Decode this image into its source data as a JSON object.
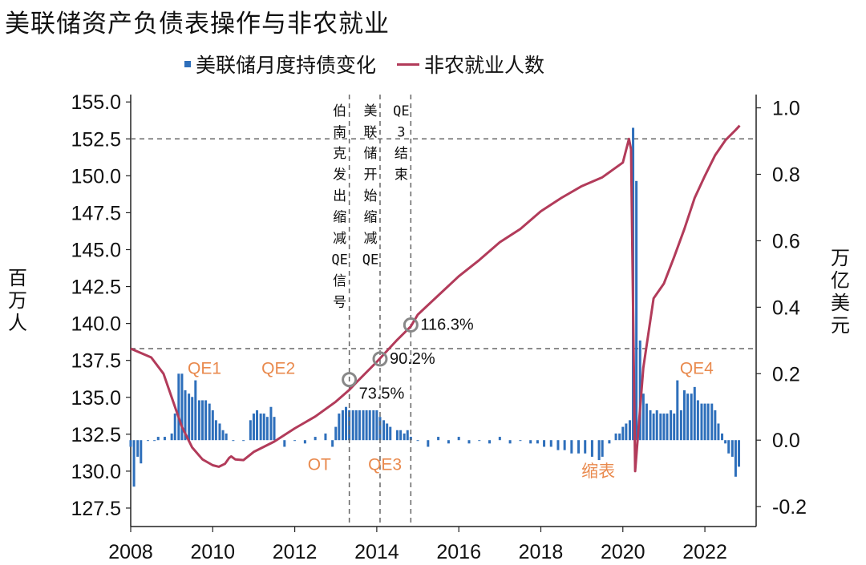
{
  "title": "美联储资产负债表操作与非农就业",
  "legend": {
    "bar_label": "美联储月度持债变化",
    "line_label": "非农就业人数"
  },
  "colors": {
    "bars": "#2e6fbb",
    "line": "#b23b5a",
    "annotation": "#e98a4e",
    "reference": "#666666"
  },
  "chart_data": {
    "type": "bar+line",
    "x_ticks": [
      "2008",
      "2010",
      "2012",
      "2014",
      "2016",
      "2018",
      "2020",
      "2022"
    ],
    "xlim": [
      2008.0,
      2023.25
    ],
    "left_axis": {
      "label": "百万人",
      "ylim": [
        126.25,
        155.5
      ],
      "ticks": [
        "127.5",
        "130.0",
        "132.5",
        "135.0",
        "137.5",
        "140.0",
        "142.5",
        "145.0",
        "147.5",
        "150.0",
        "152.5",
        "155.0"
      ]
    },
    "right_axis": {
      "label": "万亿美元",
      "ylim": [
        -0.26,
        1.04
      ],
      "ticks": [
        "-0.2",
        "0.0",
        "0.2",
        "0.4",
        "0.6",
        "0.8",
        "1.0"
      ]
    },
    "series": [
      {
        "name": "非农就业人数",
        "type": "line",
        "axis": "left",
        "points": [
          [
            2008.0,
            138.3
          ],
          [
            2008.5,
            137.7
          ],
          [
            2008.8,
            136.6
          ],
          [
            2009.0,
            135.0
          ],
          [
            2009.25,
            133.0
          ],
          [
            2009.5,
            131.6
          ],
          [
            2009.75,
            130.8
          ],
          [
            2010.0,
            130.4
          ],
          [
            2010.15,
            130.3
          ],
          [
            2010.3,
            130.5
          ],
          [
            2010.4,
            130.9
          ],
          [
            2010.45,
            131.0
          ],
          [
            2010.55,
            130.8
          ],
          [
            2010.75,
            130.75
          ],
          [
            2011.0,
            131.3
          ],
          [
            2011.5,
            132.0
          ],
          [
            2012.0,
            132.9
          ],
          [
            2012.5,
            133.7
          ],
          [
            2013.0,
            134.7
          ],
          [
            2013.33,
            135.5
          ],
          [
            2013.5,
            136.0
          ],
          [
            2014.0,
            137.4
          ],
          [
            2014.5,
            138.9
          ],
          [
            2014.83,
            139.8
          ],
          [
            2015.0,
            140.6
          ],
          [
            2015.5,
            141.9
          ],
          [
            2016.0,
            143.2
          ],
          [
            2016.5,
            144.3
          ],
          [
            2017.0,
            145.5
          ],
          [
            2017.5,
            146.4
          ],
          [
            2018.0,
            147.6
          ],
          [
            2018.5,
            148.5
          ],
          [
            2019.0,
            149.3
          ],
          [
            2019.5,
            149.9
          ],
          [
            2020.0,
            150.9
          ],
          [
            2020.15,
            152.5
          ],
          [
            2020.2,
            151.8
          ],
          [
            2020.3,
            130.0
          ],
          [
            2020.5,
            137.0
          ],
          [
            2020.75,
            141.7
          ],
          [
            2021.0,
            142.7
          ],
          [
            2021.25,
            144.5
          ],
          [
            2021.5,
            146.4
          ],
          [
            2021.75,
            148.5
          ],
          [
            2022.0,
            150.0
          ],
          [
            2022.25,
            151.4
          ],
          [
            2022.5,
            152.4
          ],
          [
            2022.75,
            153.1
          ],
          [
            2022.85,
            153.4
          ]
        ]
      },
      {
        "name": "美联储月度持债变化",
        "type": "bar",
        "axis": "right",
        "points": [
          [
            2008.0,
            -0.02
          ],
          [
            2008.08,
            -0.14
          ],
          [
            2008.17,
            -0.05
          ],
          [
            2008.25,
            -0.07
          ],
          [
            2008.42,
            0.0
          ],
          [
            2008.58,
            0.0
          ],
          [
            2008.67,
            0.01
          ],
          [
            2008.83,
            0.01
          ],
          [
            2009.0,
            0.02
          ],
          [
            2009.08,
            0.08
          ],
          [
            2009.17,
            0.2
          ],
          [
            2009.25,
            0.2
          ],
          [
            2009.33,
            0.15
          ],
          [
            2009.42,
            0.14
          ],
          [
            2009.5,
            0.13
          ],
          [
            2009.58,
            0.18
          ],
          [
            2009.67,
            0.12
          ],
          [
            2009.75,
            0.12
          ],
          [
            2009.83,
            0.12
          ],
          [
            2009.92,
            0.11
          ],
          [
            2010.0,
            0.09
          ],
          [
            2010.08,
            0.06
          ],
          [
            2010.17,
            0.05
          ],
          [
            2010.25,
            0.03
          ],
          [
            2010.33,
            0.02
          ],
          [
            2010.5,
            0.0
          ],
          [
            2010.75,
            0.0
          ],
          [
            2010.92,
            0.06
          ],
          [
            2011.0,
            0.08
          ],
          [
            2011.08,
            0.09
          ],
          [
            2011.17,
            0.08
          ],
          [
            2011.25,
            0.08
          ],
          [
            2011.33,
            0.07
          ],
          [
            2011.42,
            0.1
          ],
          [
            2011.5,
            0.07
          ],
          [
            2011.75,
            -0.02
          ],
          [
            2012.0,
            0.0
          ],
          [
            2012.25,
            -0.01
          ],
          [
            2012.5,
            0.01
          ],
          [
            2012.75,
            0.02
          ],
          [
            2012.92,
            -0.02
          ],
          [
            2013.0,
            0.04
          ],
          [
            2013.08,
            0.08
          ],
          [
            2013.17,
            0.09
          ],
          [
            2013.25,
            0.1
          ],
          [
            2013.33,
            0.09
          ],
          [
            2013.42,
            0.09
          ],
          [
            2013.5,
            0.09
          ],
          [
            2013.58,
            0.09
          ],
          [
            2013.67,
            0.09
          ],
          [
            2013.75,
            0.09
          ],
          [
            2013.83,
            0.09
          ],
          [
            2013.92,
            0.09
          ],
          [
            2014.0,
            0.09
          ],
          [
            2014.08,
            0.07
          ],
          [
            2014.17,
            0.06
          ],
          [
            2014.25,
            0.05
          ],
          [
            2014.33,
            0.04
          ],
          [
            2014.5,
            0.03
          ],
          [
            2014.58,
            0.03
          ],
          [
            2014.67,
            0.02
          ],
          [
            2014.75,
            0.03
          ],
          [
            2014.83,
            0.01
          ],
          [
            2015.0,
            0.0
          ],
          [
            2015.25,
            -0.02
          ],
          [
            2015.5,
            0.01
          ],
          [
            2015.75,
            -0.01
          ],
          [
            2016.0,
            0.01
          ],
          [
            2016.25,
            -0.01
          ],
          [
            2016.5,
            0.0
          ],
          [
            2016.75,
            -0.01
          ],
          [
            2017.0,
            0.01
          ],
          [
            2017.25,
            -0.01
          ],
          [
            2017.5,
            0.0
          ],
          [
            2017.75,
            -0.01
          ],
          [
            2017.92,
            -0.01
          ],
          [
            2018.08,
            -0.02
          ],
          [
            2018.25,
            -0.02
          ],
          [
            2018.42,
            -0.03
          ],
          [
            2018.58,
            -0.03
          ],
          [
            2018.75,
            -0.04
          ],
          [
            2018.92,
            -0.04
          ],
          [
            2019.08,
            -0.04
          ],
          [
            2019.25,
            -0.05
          ],
          [
            2019.42,
            -0.06
          ],
          [
            2019.5,
            -0.05
          ],
          [
            2019.67,
            -0.01
          ],
          [
            2019.83,
            0.02
          ],
          [
            2019.92,
            0.02
          ],
          [
            2020.0,
            0.04
          ],
          [
            2020.08,
            0.05
          ],
          [
            2020.17,
            0.06
          ],
          [
            2020.25,
            0.94
          ],
          [
            2020.33,
            0.78
          ],
          [
            2020.42,
            0.3
          ],
          [
            2020.5,
            0.14
          ],
          [
            2020.58,
            0.11
          ],
          [
            2020.67,
            0.09
          ],
          [
            2020.75,
            0.08
          ],
          [
            2020.83,
            0.09
          ],
          [
            2020.92,
            0.08
          ],
          [
            2021.0,
            0.08
          ],
          [
            2021.08,
            0.08
          ],
          [
            2021.17,
            0.09
          ],
          [
            2021.25,
            0.08
          ],
          [
            2021.33,
            0.18
          ],
          [
            2021.42,
            0.09
          ],
          [
            2021.5,
            0.15
          ],
          [
            2021.58,
            0.14
          ],
          [
            2021.67,
            0.14
          ],
          [
            2021.75,
            0.16
          ],
          [
            2021.83,
            0.12
          ],
          [
            2021.92,
            0.11
          ],
          [
            2022.0,
            0.11
          ],
          [
            2022.08,
            0.11
          ],
          [
            2022.17,
            0.11
          ],
          [
            2022.25,
            0.09
          ],
          [
            2022.33,
            0.05
          ],
          [
            2022.42,
            0.02
          ],
          [
            2022.5,
            -0.01
          ],
          [
            2022.58,
            -0.04
          ],
          [
            2022.67,
            -0.05
          ],
          [
            2022.75,
            -0.11
          ],
          [
            2022.83,
            -0.08
          ]
        ]
      }
    ],
    "reference_lines": {
      "horizontal_left": [
        138.3,
        152.5
      ],
      "vertical_x": [
        2013.33,
        2014.08,
        2014.83
      ],
      "vertical_labels": [
        {
          "x": 2013.33,
          "chars": [
            "伯",
            "南",
            "克",
            "发",
            "出",
            "缩",
            "减",
            "QE",
            "信",
            "号"
          ]
        },
        {
          "x": 2014.08,
          "chars": [
            "美",
            "联",
            "储",
            "开",
            "始",
            "缩",
            "减",
            "QE"
          ]
        },
        {
          "x": 2014.83,
          "chars": [
            "QE",
            "3",
            "结",
            "束"
          ]
        }
      ]
    },
    "markers": [
      {
        "x": 2013.33,
        "y": 136.2,
        "label": "73.5%"
      },
      {
        "x": 2014.08,
        "y": 137.6,
        "label": "90.2%"
      },
      {
        "x": 2014.83,
        "y": 139.9,
        "label": "116.3%"
      }
    ],
    "annotations": [
      {
        "text": "QE1",
        "x": 2009.8,
        "y": 0.2
      },
      {
        "text": "QE2",
        "x": 2011.6,
        "y": 0.2
      },
      {
        "text": "OT",
        "x": 2012.6,
        "y": -0.09
      },
      {
        "text": "QE3",
        "x": 2014.2,
        "y": -0.09
      },
      {
        "text": "缩表",
        "x": 2019.4,
        "y": -0.11
      },
      {
        "text": "QE4",
        "x": 2021.8,
        "y": 0.2
      }
    ]
  }
}
